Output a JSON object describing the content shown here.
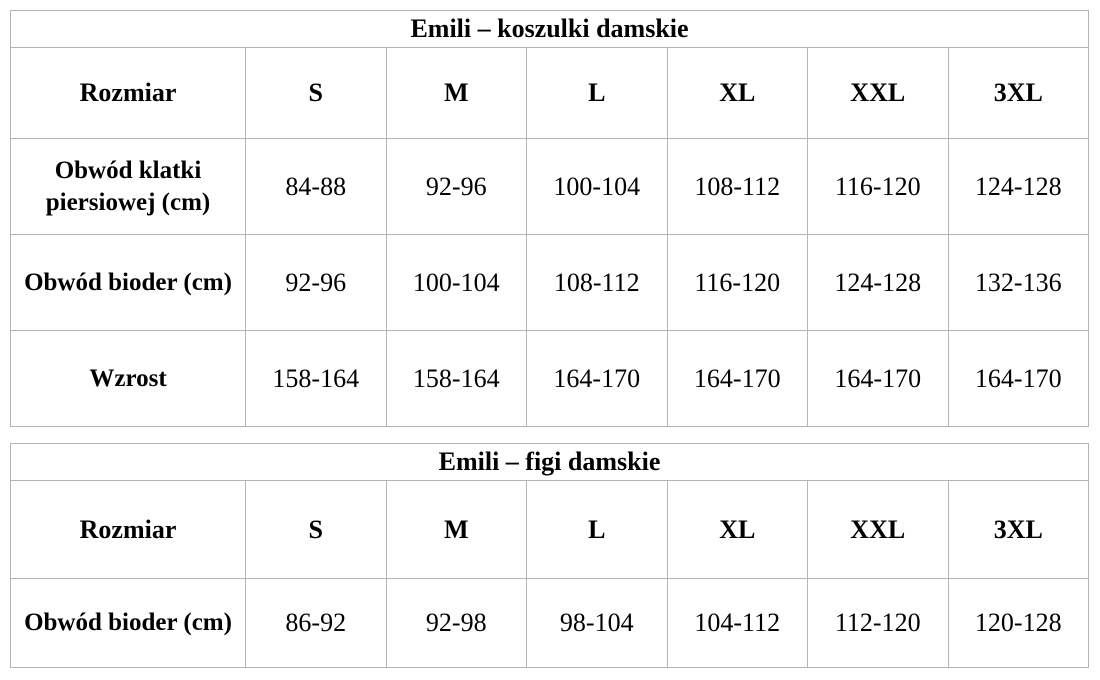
{
  "page": {
    "background_color": "#ffffff",
    "border_color": "#b4b4b4",
    "text_color": "#000000"
  },
  "tables": [
    {
      "title": "Emili – koszulki damskie",
      "header": [
        "Rozmiar",
        "S",
        "M",
        "L",
        "XL",
        "XXL",
        "3XL"
      ],
      "rows": [
        {
          "label": "Obwód klatki piersiowej (cm)",
          "values": [
            "84-88",
            "92-96",
            "100-104",
            "108-112",
            "116-120",
            "124-128"
          ]
        },
        {
          "label": "Obwód bioder (cm)",
          "values": [
            "92-96",
            "100-104",
            "108-112",
            "116-120",
            "124-128",
            "132-136"
          ]
        },
        {
          "label": "Wzrost",
          "values": [
            "158-164",
            "158-164",
            "164-170",
            "164-170",
            "164-170",
            "164-170"
          ]
        }
      ]
    },
    {
      "title": "Emili – figi damskie",
      "header": [
        "Rozmiar",
        "S",
        "M",
        "L",
        "XL",
        "XXL",
        "3XL"
      ],
      "rows": [
        {
          "label": "Obwód bioder (cm)",
          "values": [
            "86-92",
            "92-98",
            "98-104",
            "104-112",
            "112-120",
            "120-128"
          ]
        }
      ]
    }
  ]
}
